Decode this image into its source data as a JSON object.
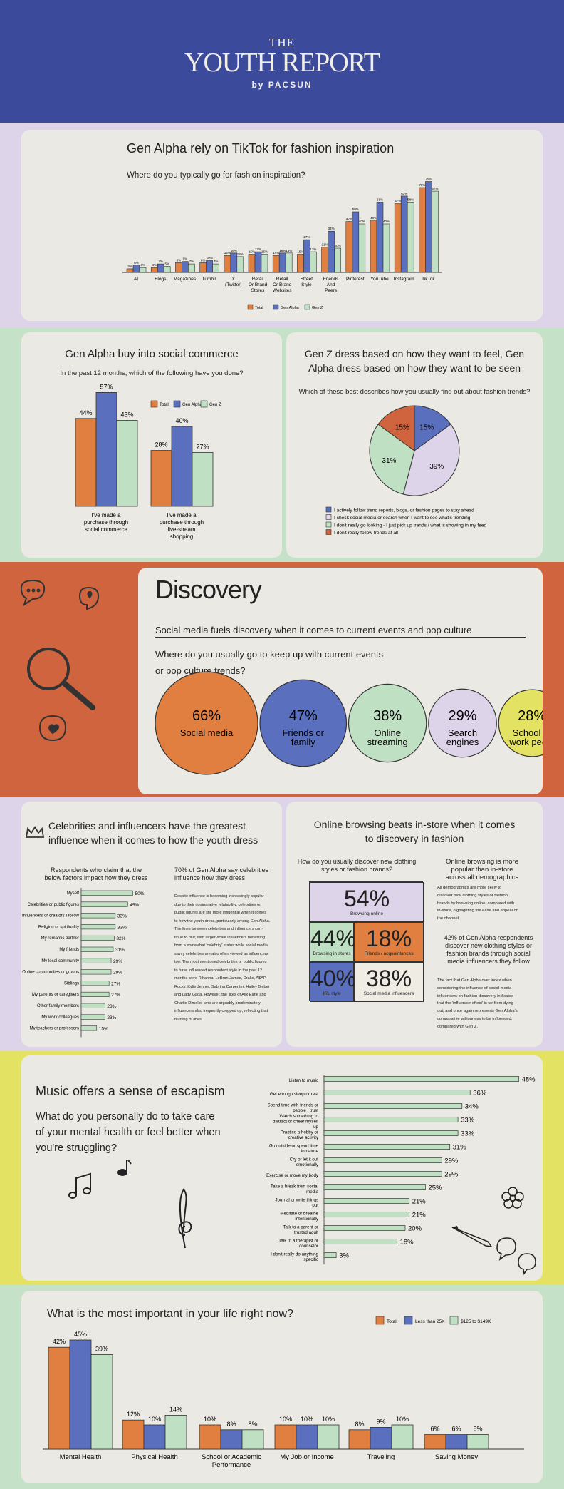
{
  "header": {
    "the": "THE",
    "title": "YOUTH REPORT",
    "by": "by PACSUN"
  },
  "colors": {
    "total": "#e07f3f",
    "gen_alpha": "#5a6fbd",
    "gen_z": "#bfe0c2",
    "lavender": "#ddd4e9",
    "mint": "#c5e2c9",
    "orange": "#d0643e",
    "yellow": "#e3e262",
    "navy": "#3b4a9b"
  },
  "s1": {
    "title": "Gen Alpha rely on TikTok for fashion inspiration",
    "question": "Where do you typically go for fashion inspiration?"
  },
  "s2": {
    "title": "Gen Alpha buy into social commerce",
    "question": "In the past 12 months, which of the following have you done?"
  },
  "s3": {
    "title_line1": "Gen Z dress based on how they want to feel, Gen",
    "title_line2": "Alpha dress based on how they want to be seen",
    "question": "Which of these best describes how you usually find out about fashion trends?"
  },
  "s4": {
    "title": "Discovery",
    "subtitle": "Social media fuels discovery when it comes to current events and pop culture",
    "question_line1": "Where do you usually go to keep up with current events",
    "question_line2": "or pop culture trends?"
  },
  "s5": {
    "title_line1": "Celebrities and influencers have the greatest",
    "title_line2": "influence when it comes to how the youth dress",
    "chart_heading_line1": "Respondents who claim that the",
    "chart_heading_line2": "below factors impact how they dress",
    "text_heading_line1": "70% of Gen Alpha say celebrities",
    "text_heading_line2": "influence how they dress",
    "body": [
      "Despite influence is becoming increasingly popular",
      "due to their comparative relatability, celebrities or",
      "public figures are still more influential when it comes",
      "to how the youth dress, particularly among Gen Alpha.",
      "The lines between celebrities and influencers con-",
      "tinue to blur, with larger-scale influencers benefiting",
      "from a somewhat 'celebrity' status while social media",
      "savvy celebrities are also often viewed as influencers",
      "too. The most mentioned celebrities or public figures",
      "to have influenced respondent style in the past 12",
      "months were Rihanna, LeBron James, Drake, A$AP",
      "Rocky, Kylie Jenner, Sabrina Carpenter, Hailey Bieber",
      "and Lady Gaga. However, the likes of Alix Earle and",
      "Charlie Dimelio, who are arguably predominately",
      "influencers also frequently cropped up, reflecting that",
      "blurring of lines."
    ]
  },
  "s6": {
    "title_line1": "Online browsing beats in-store when it comes",
    "title_line2": "to discovery in fashion",
    "question_line1": "How do you usually discover new clothing",
    "question_line2": "styles or fashion brands?",
    "side_heading_line1": "Online browsing is more",
    "side_heading_line2": "popular than in-store",
    "side_heading_line3": "across all demographics",
    "side_body": [
      "All demographics are more likely to",
      "discover new clothing styles or fashion",
      "brands by browsing online, compared with",
      "in-store, highlighting the ease and appeal of",
      "the channel."
    ],
    "side_heading2": [
      "42% of Gen Alpha respondents",
      "discover new clothing styles or",
      "fashion brands through social",
      "media influencers they follow"
    ],
    "side_body2": [
      "The fact that Gen Alpha over index when",
      "considering the influence of social media",
      "influencers on fashion discovery indicates",
      "that the 'influencer effect' is far from dying",
      "out, and once again represents Gen Alpha's",
      "comparative willingness to be influenced,",
      "compared with Gen Z."
    ]
  },
  "s7": {
    "title": "Music offers a sense of escapism",
    "question_line1": "What do you personally do to take care",
    "question_line2": "of your mental health or feel better when",
    "question_line3": "you're struggling?"
  },
  "s8": {
    "title": "What is the most important in your life right now?"
  },
  "chart_data": [
    {
      "id": "inspiration",
      "type": "bar",
      "categories": [
        "AI",
        "Blogs",
        "Magazines",
        "Tumblr",
        "X (Twitter)",
        "Retail Or Brand Stores",
        "Retail Or Brand Websites",
        "Street Style",
        "Friends And Peers",
        "Pinterest",
        "YouTube",
        "Instagram",
        "TikTok"
      ],
      "series": [
        {
          "name": "Total",
          "values": [
            3,
            4,
            8,
            8,
            14,
            15,
            14,
            15,
            21,
            42,
            43,
            57,
            70
          ]
        },
        {
          "name": "Gen Alpha",
          "values": [
            6,
            7,
            9,
            10,
            16,
            17,
            16,
            27,
            34,
            50,
            58,
            63,
            75
          ]
        },
        {
          "name": "Gen Z",
          "values": [
            4,
            5,
            7,
            7,
            13,
            15,
            16,
            17,
            20,
            40,
            40,
            58,
            67
          ]
        }
      ],
      "legend_position": "bottom"
    },
    {
      "id": "social_commerce",
      "type": "bar",
      "categories": [
        "I've made a purchase through social commerce",
        "I've made a purchase through live-stream shopping"
      ],
      "series": [
        {
          "name": "Total",
          "values": [
            44,
            28
          ]
        },
        {
          "name": "Gen Alpha",
          "values": [
            57,
            40
          ]
        },
        {
          "name": "Gen Z",
          "values": [
            43,
            27
          ]
        }
      ],
      "legend_position": "top-right"
    },
    {
      "id": "trends",
      "type": "pie",
      "labels": [
        "I actively follow trend reports, blogs, or fashion pages to stay ahead",
        "I check social media or search when I want to see what's trending",
        "I don't really go looking - I just pick up trends / what is showing in my feed",
        "I don't really follow trends at all"
      ],
      "values": [
        15,
        39,
        31,
        15
      ]
    },
    {
      "id": "current_events",
      "type": "bubble",
      "labels": [
        "Social media",
        "Friends or family",
        "Online streaming",
        "Search engines",
        "School or work peers"
      ],
      "values": [
        66,
        47,
        38,
        29,
        28
      ]
    },
    {
      "id": "dress_factors",
      "type": "bar",
      "orientation": "horizontal",
      "categories": [
        "Myself",
        "Celebrities or public figures",
        "Influencers or creators I follow",
        "Religion or spirituality",
        "My romantic partner",
        "My friends",
        "My local community",
        "Online communities or groups",
        "Siblings",
        "My parents or caregivers",
        "Other family members",
        "My work colleagues",
        "My teachers or professors"
      ],
      "values": [
        50,
        45,
        33,
        33,
        32,
        31,
        29,
        29,
        27,
        27,
        23,
        23,
        15
      ]
    },
    {
      "id": "discovery",
      "type": "treemap",
      "labels": [
        "Browsing online",
        "Browsing in stores",
        "Friends / acquaintances",
        "IRL style",
        "Social media influencers"
      ],
      "values": [
        54,
        44,
        18,
        40,
        38
      ]
    },
    {
      "id": "mental_health",
      "type": "bar",
      "orientation": "horizontal",
      "categories": [
        "Listen to music",
        "Get enough sleep or rest",
        "Spend time with friends or people I trust",
        "Watch something to distract or cheer myself up",
        "Practice a hobby or creative activity",
        "Go outside or spend time in nature",
        "Cry or let it out emotionally",
        "Exercise or move my body",
        "Take a break from social media",
        "Journal or write things out",
        "Meditate or breathe intentionally",
        "Talk to a parent or trusted adult",
        "Talk to a therapist or counselor",
        "I don't really do anything specific"
      ],
      "values": [
        48,
        36,
        34,
        33,
        33,
        31,
        29,
        29,
        25,
        21,
        21,
        20,
        18,
        3
      ]
    },
    {
      "id": "important",
      "type": "bar",
      "categories": [
        "Mental Health",
        "Physical Health",
        "School or Academic Performance",
        "My Job or Income",
        "Traveling",
        "Saving Money"
      ],
      "series": [
        {
          "name": "Total",
          "values": [
            42,
            12,
            10,
            10,
            8,
            6
          ]
        },
        {
          "name": "Less than 25K",
          "values": [
            45,
            10,
            8,
            10,
            9,
            6
          ]
        },
        {
          "name": "$125 to $149K",
          "values": [
            39,
            14,
            8,
            10,
            10,
            6
          ]
        }
      ],
      "legend_position": "top-right"
    }
  ]
}
